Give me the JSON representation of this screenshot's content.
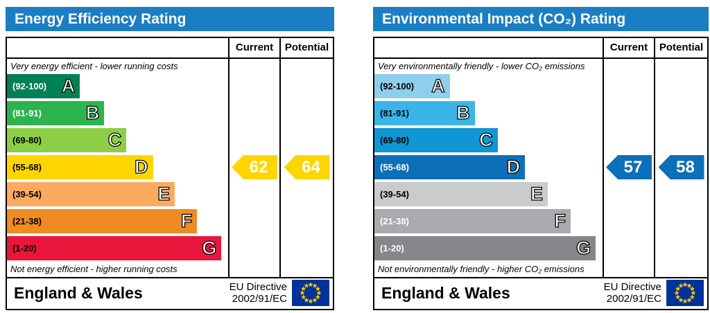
{
  "theme": {
    "header_bg": "#1b7ec2",
    "flag_blue": "#003399",
    "flag_star": "#ffcc00"
  },
  "chart_data": [
    {
      "type": "bar",
      "title": "Energy Efficiency Rating",
      "categories": [
        "A",
        "B",
        "C",
        "D",
        "E",
        "F",
        "G"
      ],
      "band_ranges": [
        "92-100",
        "81-91",
        "69-80",
        "55-68",
        "39-54",
        "21-38",
        "1-20"
      ],
      "band_colors": [
        "#008054",
        "#2cb34d",
        "#8dce46",
        "#ffd500",
        "#fbab60",
        "#ee8b22",
        "#e9153b"
      ],
      "columns": [
        "Current",
        "Potential"
      ],
      "current": 62,
      "potential": 64,
      "current_band": "D",
      "potential_band": "D",
      "marker_color": "#ffd500",
      "top_note": "Very energy efficient - lower running costs",
      "bottom_note": "Not energy efficient - higher running costs",
      "region": "England & Wales",
      "directive": "EU Directive 2002/91/EC"
    },
    {
      "type": "bar",
      "title": "Environmental Impact (CO₂) Rating",
      "categories": [
        "A",
        "B",
        "C",
        "D",
        "E",
        "F",
        "G"
      ],
      "band_ranges": [
        "92-100",
        "81-91",
        "69-80",
        "55-68",
        "39-54",
        "21-38",
        "1-20"
      ],
      "band_colors": [
        "#8fceec",
        "#3bb5e9",
        "#0f96d3",
        "#0c70b8",
        "#c9cbcd",
        "#a8aaad",
        "#85878a"
      ],
      "columns": [
        "Current",
        "Potential"
      ],
      "current": 57,
      "potential": 58,
      "current_band": "D",
      "potential_band": "D",
      "marker_color": "#0c70b8",
      "top_note": "Very environmentally friendly - lower CO₂ emissions",
      "bottom_note": "Not environmentally friendly - higher CO₂ emissions",
      "region": "England & Wales",
      "directive": "EU Directive 2002/91/EC"
    }
  ],
  "panels": [
    {
      "title": "Energy Efficiency Rating",
      "header": {
        "current": "Current",
        "potential": "Potential"
      },
      "top_note": "Very energy efficient - lower running costs",
      "bottom_note": "Not energy efficient - higher running costs",
      "bands": [
        {
          "range": "(92-100)",
          "letter": "A",
          "color": "#008054",
          "label_color": "#ffffff",
          "width_pct": 33
        },
        {
          "range": "(81-91)",
          "letter": "B",
          "color": "#2cb34d",
          "label_color": "#ffffff",
          "width_pct": 44
        },
        {
          "range": "(69-80)",
          "letter": "C",
          "color": "#8dce46",
          "label_color": "#000000",
          "width_pct": 54
        },
        {
          "range": "(55-68)",
          "letter": "D",
          "color": "#ffd500",
          "label_color": "#000000",
          "width_pct": 66
        },
        {
          "range": "(39-54)",
          "letter": "E",
          "color": "#fbab60",
          "label_color": "#000000",
          "width_pct": 76
        },
        {
          "range": "(21-38)",
          "letter": "F",
          "color": "#ee8b22",
          "label_color": "#000000",
          "width_pct": 86
        },
        {
          "range": "(1-20)",
          "letter": "G",
          "color": "#e9153b",
          "label_color": "#000000",
          "width_pct": 97
        }
      ],
      "current": {
        "value": "62",
        "color": "#ffd500"
      },
      "potential": {
        "value": "64",
        "color": "#ffd500"
      },
      "footer": {
        "region": "England & Wales",
        "directive1": "EU Directive",
        "directive2": "2002/91/EC"
      }
    },
    {
      "title": "Environmental Impact (CO₂) Rating",
      "header": {
        "current": "Current",
        "potential": "Potential"
      },
      "top_note": "Very environmentally friendly - lower CO₂ emissions",
      "bottom_note": "Not environmentally friendly - higher CO₂ emissions",
      "bands": [
        {
          "range": "(92-100)",
          "letter": "A",
          "color": "#8fceec",
          "label_color": "#000000",
          "width_pct": 33
        },
        {
          "range": "(81-91)",
          "letter": "B",
          "color": "#3bb5e9",
          "label_color": "#000000",
          "width_pct": 44
        },
        {
          "range": "(69-80)",
          "letter": "C",
          "color": "#0f96d3",
          "label_color": "#000000",
          "width_pct": 54
        },
        {
          "range": "(55-68)",
          "letter": "D",
          "color": "#0c70b8",
          "label_color": "#ffffff",
          "width_pct": 66
        },
        {
          "range": "(39-54)",
          "letter": "E",
          "color": "#c9cbcd",
          "label_color": "#000000",
          "width_pct": 76
        },
        {
          "range": "(21-38)",
          "letter": "F",
          "color": "#a8aaad",
          "label_color": "#ffffff",
          "width_pct": 86
        },
        {
          "range": "(1-20)",
          "letter": "G",
          "color": "#85878a",
          "label_color": "#ffffff",
          "width_pct": 97
        }
      ],
      "current": {
        "value": "57",
        "color": "#0c70b8"
      },
      "potential": {
        "value": "58",
        "color": "#0c70b8"
      },
      "footer": {
        "region": "England & Wales",
        "directive1": "EU Directive",
        "directive2": "2002/91/EC"
      }
    }
  ]
}
